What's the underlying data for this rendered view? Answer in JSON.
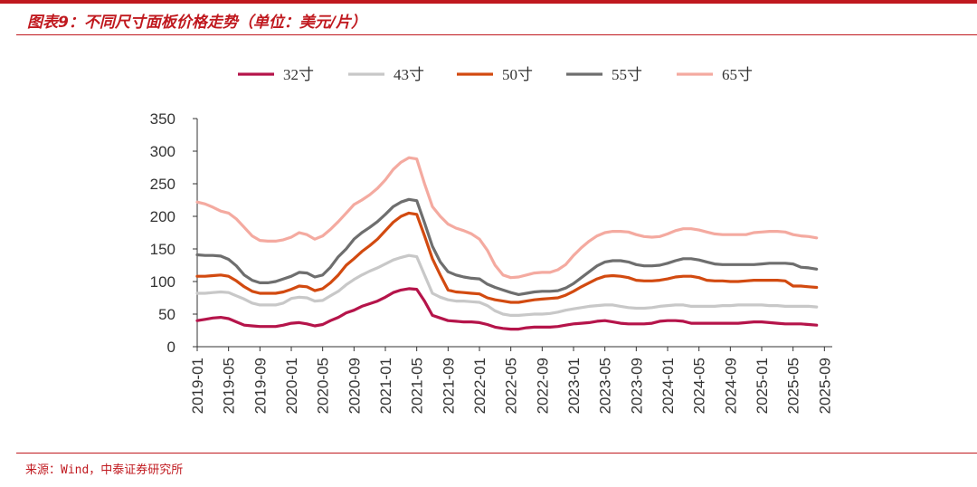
{
  "header": {
    "title": "图表9：不同尺寸面板价格走势（单位：美元/片）"
  },
  "footer": {
    "source": "来源：Wind，中泰证券研究所"
  },
  "colors": {
    "accent": "#c0191f",
    "s32": "#b5144a",
    "s43": "#c8c8c8",
    "s50": "#d24a10",
    "s55": "#6e6e6e",
    "s65": "#f4aaa0"
  },
  "chart_data": {
    "type": "line",
    "title": "不同尺寸面板价格走势（单位：美元/片）",
    "xlabel": "",
    "ylabel": "",
    "ylim": [
      0,
      350
    ],
    "yticks": [
      0,
      50,
      100,
      150,
      200,
      250,
      300,
      350
    ],
    "grid": false,
    "legend_position": "top",
    "x_tick_labels": [
      "2019-01",
      "2019-05",
      "2019-09",
      "2020-01",
      "2020-05",
      "2020-09",
      "2021-01",
      "2021-05",
      "2021-09",
      "2022-01",
      "2022-05",
      "2022-09",
      "2023-01",
      "2023-05",
      "2023-09",
      "2024-01",
      "2024-05",
      "2024-09",
      "2025-01",
      "2025-05",
      "2025-09"
    ],
    "x_start": "2019-01",
    "x_end": "2025-10",
    "series": [
      {
        "name": "32寸",
        "color": "#b5144a",
        "values": [
          40,
          42,
          44,
          45,
          43,
          38,
          33,
          32,
          31,
          31,
          31,
          33,
          36,
          37,
          35,
          32,
          34,
          40,
          45,
          52,
          56,
          62,
          66,
          70,
          76,
          83,
          87,
          89,
          88,
          70,
          48,
          44,
          40,
          39,
          38,
          38,
          37,
          34,
          30,
          28,
          27,
          27,
          29,
          30,
          30,
          30,
          31,
          33,
          35,
          36,
          37,
          39,
          40,
          38,
          36,
          35,
          35,
          35,
          36,
          39,
          40,
          40,
          39,
          36,
          36,
          36,
          36,
          36,
          36,
          36,
          37,
          38,
          38,
          37,
          36,
          35,
          35,
          35,
          34,
          33
        ]
      },
      {
        "name": "43寸",
        "color": "#c8c8c8",
        "values": [
          82,
          82,
          83,
          84,
          83,
          78,
          73,
          67,
          64,
          64,
          64,
          67,
          74,
          76,
          75,
          70,
          71,
          78,
          85,
          95,
          103,
          110,
          116,
          121,
          127,
          133,
          137,
          140,
          138,
          110,
          82,
          76,
          72,
          70,
          70,
          69,
          68,
          63,
          55,
          50,
          48,
          48,
          49,
          50,
          50,
          51,
          53,
          56,
          58,
          60,
          62,
          63,
          64,
          64,
          62,
          60,
          59,
          59,
          60,
          62,
          63,
          64,
          64,
          62,
          62,
          62,
          62,
          63,
          63,
          64,
          64,
          64,
          64,
          63,
          63,
          62,
          62,
          62,
          62,
          61
        ]
      },
      {
        "name": "50寸",
        "color": "#d24a10",
        "values": [
          108,
          108,
          109,
          110,
          108,
          101,
          92,
          85,
          82,
          82,
          82,
          84,
          88,
          93,
          92,
          86,
          89,
          98,
          110,
          125,
          135,
          146,
          155,
          165,
          178,
          191,
          200,
          205,
          203,
          170,
          135,
          110,
          87,
          84,
          83,
          82,
          81,
          75,
          72,
          70,
          68,
          68,
          70,
          72,
          73,
          74,
          75,
          79,
          85,
          92,
          98,
          104,
          108,
          109,
          108,
          106,
          102,
          101,
          101,
          102,
          104,
          107,
          108,
          108,
          106,
          102,
          101,
          101,
          100,
          100,
          101,
          102,
          102,
          102,
          102,
          101,
          93,
          93,
          92,
          91
        ]
      },
      {
        "name": "55寸",
        "color": "#6e6e6e",
        "values": [
          141,
          140,
          140,
          139,
          134,
          124,
          110,
          102,
          98,
          98,
          100,
          104,
          108,
          114,
          113,
          107,
          110,
          122,
          138,
          150,
          165,
          175,
          183,
          192,
          203,
          215,
          222,
          226,
          224,
          190,
          154,
          130,
          115,
          110,
          107,
          105,
          104,
          96,
          91,
          87,
          83,
          80,
          82,
          84,
          85,
          85,
          86,
          90,
          97,
          106,
          115,
          124,
          130,
          132,
          132,
          130,
          126,
          124,
          124,
          125,
          128,
          132,
          135,
          135,
          133,
          130,
          127,
          126,
          126,
          126,
          126,
          126,
          127,
          128,
          128,
          128,
          127,
          122,
          121,
          119
        ]
      },
      {
        "name": "65寸",
        "color": "#f4aaa0",
        "values": [
          222,
          219,
          214,
          208,
          205,
          196,
          183,
          170,
          163,
          162,
          162,
          164,
          168,
          175,
          172,
          165,
          170,
          180,
          192,
          205,
          218,
          225,
          233,
          243,
          256,
          272,
          283,
          290,
          288,
          250,
          215,
          200,
          188,
          182,
          178,
          173,
          165,
          148,
          125,
          110,
          106,
          107,
          110,
          113,
          114,
          114,
          118,
          126,
          140,
          152,
          162,
          170,
          175,
          177,
          177,
          176,
          172,
          169,
          168,
          169,
          173,
          178,
          181,
          181,
          179,
          176,
          173,
          172,
          172,
          172,
          172,
          175,
          176,
          177,
          177,
          176,
          172,
          170,
          169,
          167
        ]
      }
    ]
  }
}
